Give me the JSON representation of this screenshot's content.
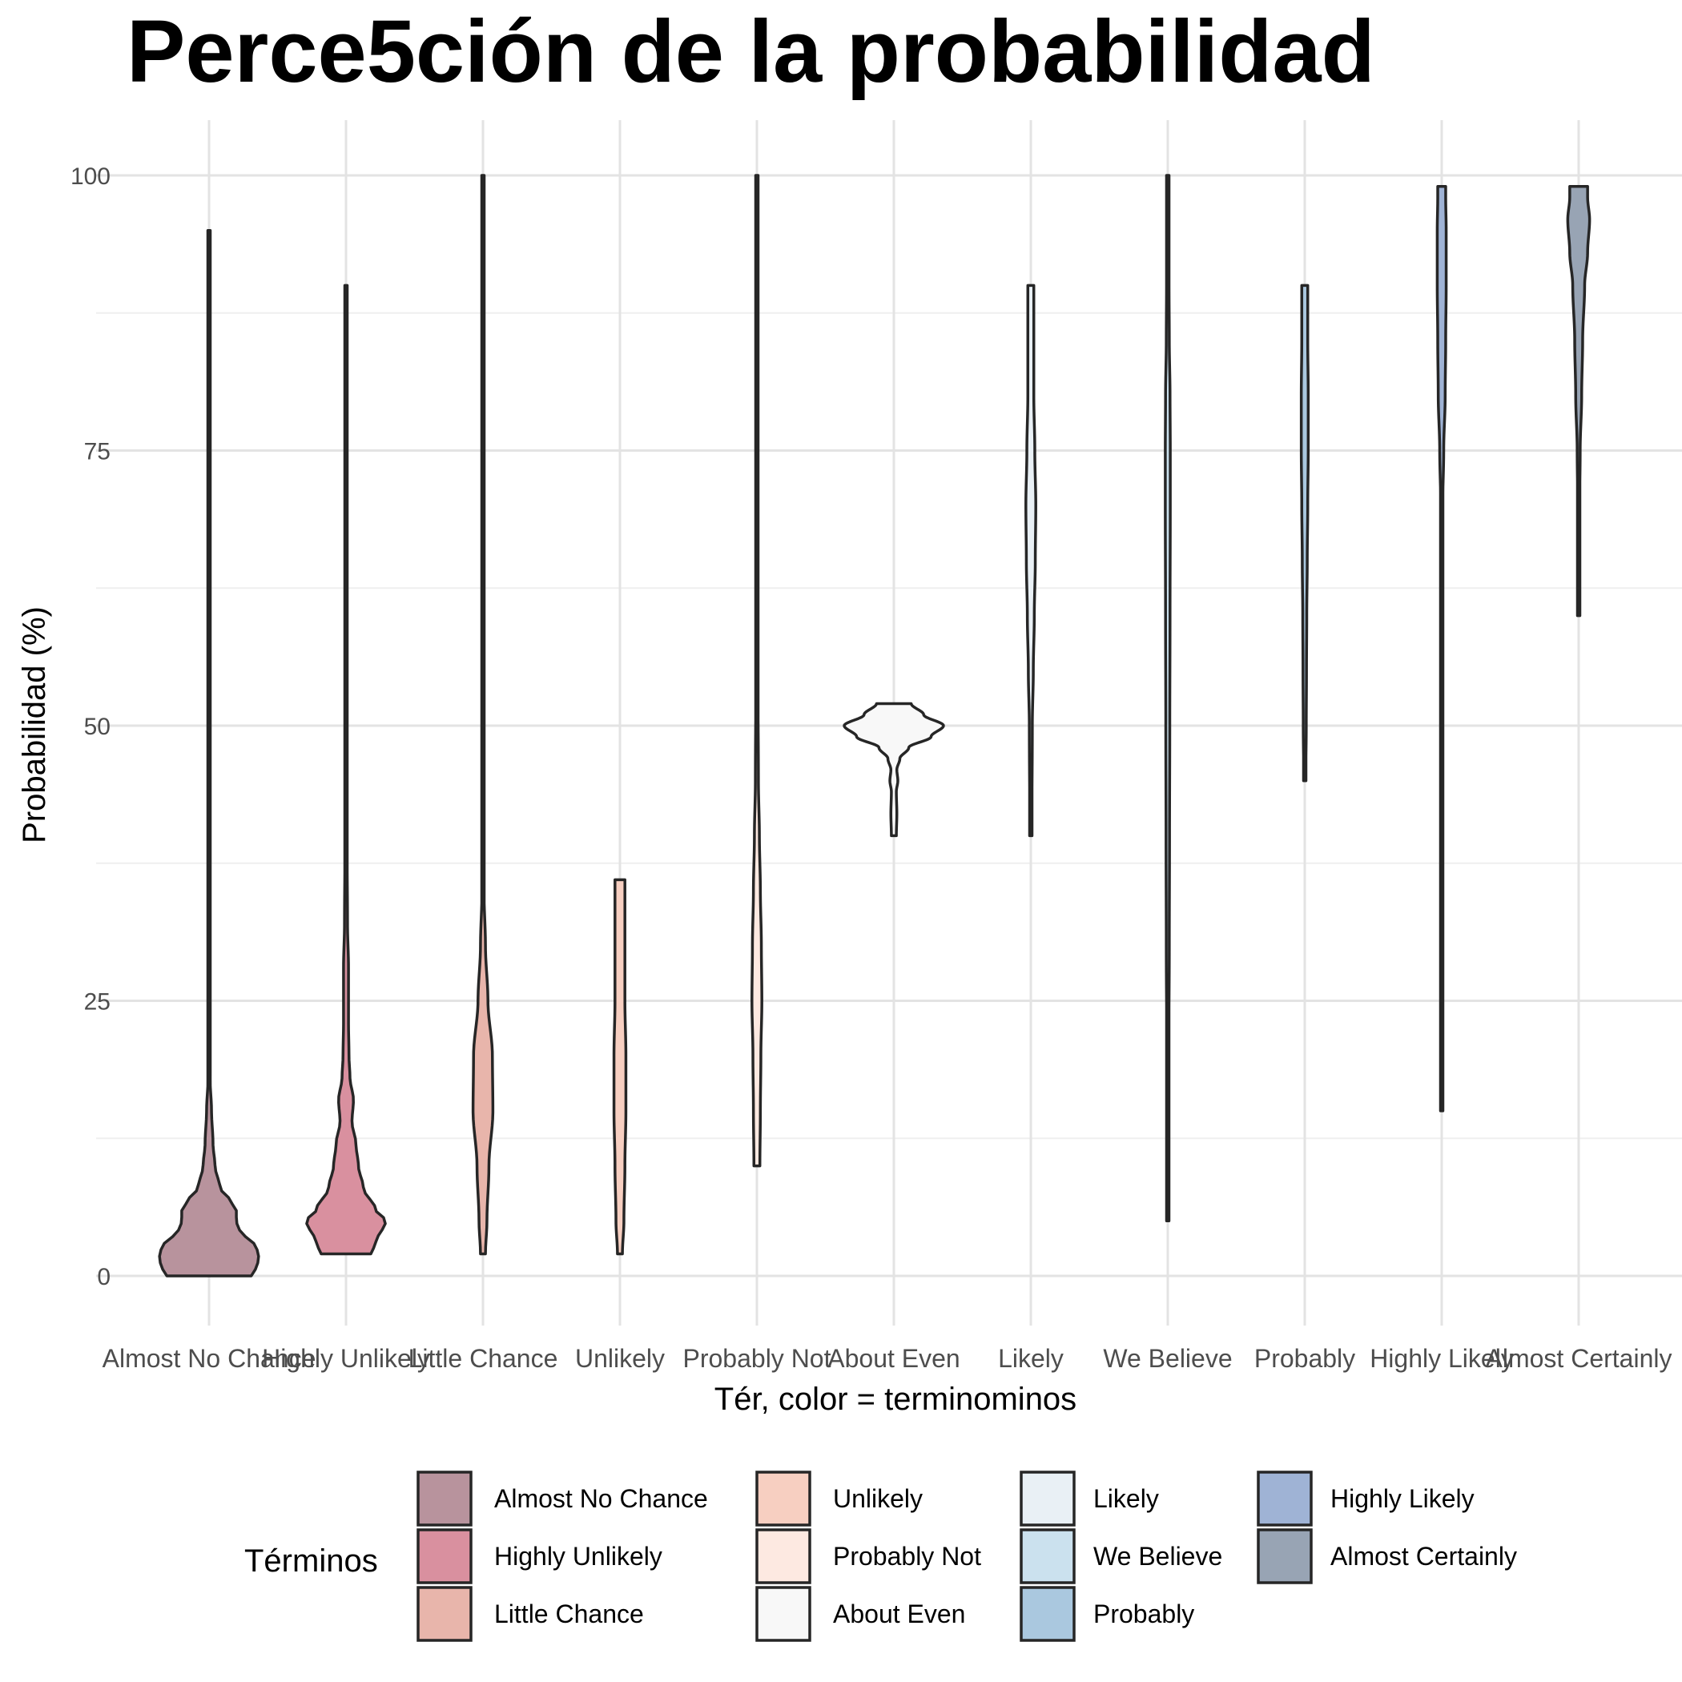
{
  "chart_data": {
    "type": "violin",
    "title": "Perce5ción de la probabilidad",
    "xlabel": "Tér, color = terminominos",
    "ylabel": "Probabilidad (%)",
    "ylim": [
      -5,
      105
    ],
    "y_ticks": [
      0,
      25,
      50,
      75,
      100
    ],
    "grid": true,
    "legend": {
      "title": "Términos",
      "position": "bottom",
      "columns": 4
    },
    "categories": [
      "Almost No Chance",
      "Highly Unlikely",
      "Little Chance",
      "Unlikely",
      "Probably Not",
      "About Even",
      "Likely",
      "We Believe",
      "Probably",
      "Highly Likely",
      "Almost Certainly"
    ],
    "colors": [
      "#b8939d",
      "#d9909f",
      "#e8b5ab",
      "#f7cfc1",
      "#fde9e1",
      "#f8f8f8",
      "#e9f0f5",
      "#cbe1ee",
      "#aac8df",
      "#9fb3d5",
      "#98a4b4"
    ],
    "series": [
      {
        "name": "Almost No Chance",
        "min": 0,
        "max": 95,
        "profile": [
          [
            0,
            0.85
          ],
          [
            1,
            0.98
          ],
          [
            2,
            1.0
          ],
          [
            3,
            0.9
          ],
          [
            4,
            0.62
          ],
          [
            5,
            0.55
          ],
          [
            6,
            0.55
          ],
          [
            7,
            0.4
          ],
          [
            8,
            0.22
          ],
          [
            10,
            0.12
          ],
          [
            12,
            0.08
          ],
          [
            15,
            0.05
          ],
          [
            18,
            0.02
          ],
          [
            30,
            0.02
          ],
          [
            95,
            0.02
          ]
        ]
      },
      {
        "name": "Highly Unlikely",
        "min": 2,
        "max": 90,
        "profile": [
          [
            2,
            0.5
          ],
          [
            3,
            0.6
          ],
          [
            5,
            0.8
          ],
          [
            6,
            0.6
          ],
          [
            8,
            0.35
          ],
          [
            10,
            0.25
          ],
          [
            12,
            0.2
          ],
          [
            14,
            0.12
          ],
          [
            16,
            0.15
          ],
          [
            18,
            0.08
          ],
          [
            20,
            0.06
          ],
          [
            23,
            0.05
          ],
          [
            28,
            0.05
          ],
          [
            32,
            0.03
          ],
          [
            40,
            0.02
          ],
          [
            90,
            0.02
          ]
        ]
      },
      {
        "name": "Little Chance",
        "min": 2,
        "max": 100,
        "profile": [
          [
            2,
            0.05
          ],
          [
            5,
            0.08
          ],
          [
            10,
            0.12
          ],
          [
            15,
            0.2
          ],
          [
            20,
            0.19
          ],
          [
            25,
            0.1
          ],
          [
            30,
            0.05
          ],
          [
            35,
            0.02
          ],
          [
            100,
            0.02
          ]
        ]
      },
      {
        "name": "Unlikely",
        "min": 2,
        "max": 36,
        "profile": [
          [
            2,
            0.05
          ],
          [
            5,
            0.08
          ],
          [
            10,
            0.1
          ],
          [
            15,
            0.12
          ],
          [
            20,
            0.12
          ],
          [
            25,
            0.1
          ],
          [
            30,
            0.1
          ],
          [
            36,
            0.1
          ]
        ]
      },
      {
        "name": "Probably Not",
        "min": 10,
        "max": 100,
        "profile": [
          [
            10,
            0.06
          ],
          [
            15,
            0.07
          ],
          [
            20,
            0.08
          ],
          [
            25,
            0.1
          ],
          [
            30,
            0.09
          ],
          [
            35,
            0.07
          ],
          [
            40,
            0.05
          ],
          [
            45,
            0.03
          ],
          [
            55,
            0.02
          ],
          [
            100,
            0.02
          ]
        ]
      },
      {
        "name": "About Even",
        "min": 40,
        "max": 52,
        "profile": [
          [
            40,
            0.05
          ],
          [
            42,
            0.06
          ],
          [
            44,
            0.05
          ],
          [
            45,
            0.08
          ],
          [
            46,
            0.06
          ],
          [
            47,
            0.12
          ],
          [
            48,
            0.3
          ],
          [
            49,
            0.75
          ],
          [
            50,
            1.0
          ],
          [
            51,
            0.6
          ],
          [
            52,
            0.35
          ]
        ]
      },
      {
        "name": "Likely",
        "min": 40,
        "max": 90,
        "profile": [
          [
            40,
            0.02
          ],
          [
            50,
            0.03
          ],
          [
            55,
            0.05
          ],
          [
            60,
            0.07
          ],
          [
            65,
            0.09
          ],
          [
            70,
            0.1
          ],
          [
            75,
            0.08
          ],
          [
            80,
            0.06
          ],
          [
            85,
            0.06
          ],
          [
            90,
            0.06
          ]
        ]
      },
      {
        "name": "We Believe",
        "min": 5,
        "max": 100,
        "profile": [
          [
            5,
            0.02
          ],
          [
            20,
            0.02
          ],
          [
            30,
            0.03
          ],
          [
            40,
            0.035
          ],
          [
            50,
            0.04
          ],
          [
            60,
            0.045
          ],
          [
            70,
            0.05
          ],
          [
            75,
            0.05
          ],
          [
            80,
            0.045
          ],
          [
            85,
            0.03
          ],
          [
            90,
            0.025
          ],
          [
            100,
            0.025
          ]
        ]
      },
      {
        "name": "Probably",
        "min": 45,
        "max": 90,
        "profile": [
          [
            45,
            0.02
          ],
          [
            50,
            0.03
          ],
          [
            55,
            0.035
          ],
          [
            60,
            0.04
          ],
          [
            65,
            0.05
          ],
          [
            70,
            0.06
          ],
          [
            75,
            0.07
          ],
          [
            80,
            0.07
          ],
          [
            85,
            0.06
          ],
          [
            90,
            0.06
          ]
        ]
      },
      {
        "name": "Highly Likely",
        "min": 15,
        "max": 99,
        "profile": [
          [
            15,
            0.02
          ],
          [
            50,
            0.02
          ],
          [
            70,
            0.02
          ],
          [
            75,
            0.04
          ],
          [
            80,
            0.07
          ],
          [
            85,
            0.08
          ],
          [
            90,
            0.09
          ],
          [
            95,
            0.09
          ],
          [
            98,
            0.08
          ],
          [
            99,
            0.08
          ]
        ]
      },
      {
        "name": "Almost Certainly",
        "min": 60,
        "max": 99,
        "profile": [
          [
            60,
            0.02
          ],
          [
            70,
            0.02
          ],
          [
            75,
            0.03
          ],
          [
            80,
            0.06
          ],
          [
            85,
            0.08
          ],
          [
            90,
            0.12
          ],
          [
            93,
            0.18
          ],
          [
            96,
            0.22
          ],
          [
            98,
            0.18
          ],
          [
            99,
            0.18
          ]
        ]
      }
    ]
  }
}
